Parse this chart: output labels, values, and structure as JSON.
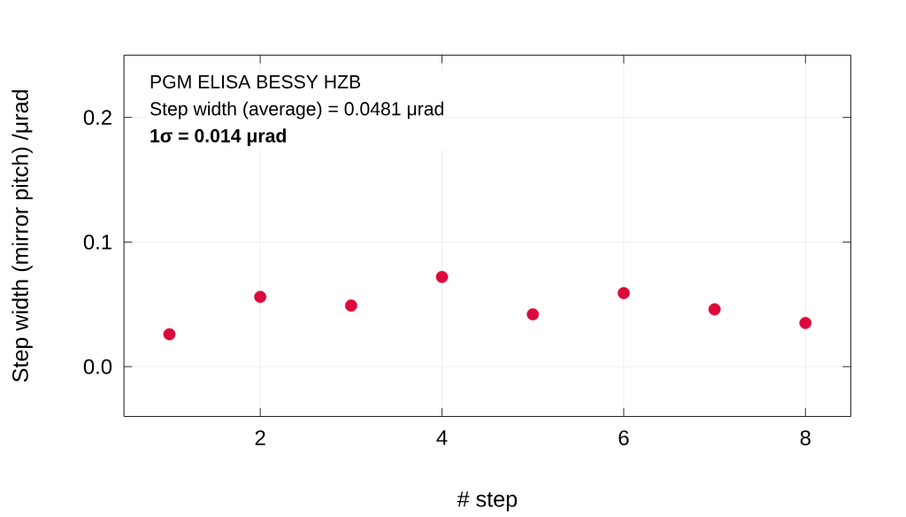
{
  "chart_data": {
    "type": "scatter",
    "xlabel": "# step",
    "ylabel": "Step width (mirror pitch) /μrad",
    "x": [
      1,
      2,
      3,
      4,
      5,
      6,
      7,
      8
    ],
    "values": [
      0.026,
      0.056,
      0.049,
      0.072,
      0.042,
      0.059,
      0.046,
      0.035
    ],
    "color": "#dc0a3c",
    "marker": "circle",
    "xlim": [
      0.5,
      8.5
    ],
    "ylim": [
      -0.04,
      0.25
    ],
    "xticks": [
      2,
      4,
      6,
      8
    ],
    "yticks": [
      {
        "value": 0,
        "label": "0.0"
      },
      {
        "value": 0.1,
        "label": "0.1"
      },
      {
        "value": 0.2,
        "label": "0.2"
      }
    ],
    "grid": true,
    "annotations": [
      "PGM ELISA BESSY HZB",
      "Step width (average) = 0.0481 μrad",
      "**1σ = 0.014 μrad**"
    ]
  }
}
